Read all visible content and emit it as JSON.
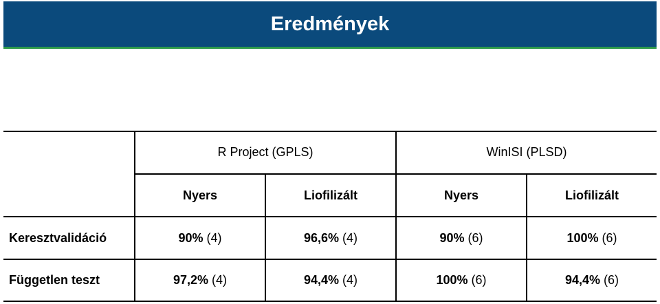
{
  "slide": {
    "title": "Eredmények"
  },
  "table": {
    "groups": [
      "R Project (GPLS)",
      "WinISI (PLSD)"
    ],
    "columns": [
      "Nyers",
      "Liofilizált",
      "Nyers",
      "Liofilizált"
    ],
    "rows": [
      {
        "label": "Keresztvalidáció",
        "cells": [
          {
            "value": "90%",
            "count": "(4)"
          },
          {
            "value": "96,6%",
            "count": "(4)"
          },
          {
            "value": "90%",
            "count": "(6)"
          },
          {
            "value": "100%",
            "count": "(6)"
          }
        ]
      },
      {
        "label": "Független teszt",
        "cells": [
          {
            "value": "97,2%",
            "count": "(4)"
          },
          {
            "value": "94,4%",
            "count": "(4)"
          },
          {
            "value": "100%",
            "count": "(6)"
          },
          {
            "value": "94,4%",
            "count": "(6)"
          }
        ]
      }
    ]
  },
  "colors": {
    "banner": "#0b4a7c",
    "accent": "#2e9a4a"
  }
}
